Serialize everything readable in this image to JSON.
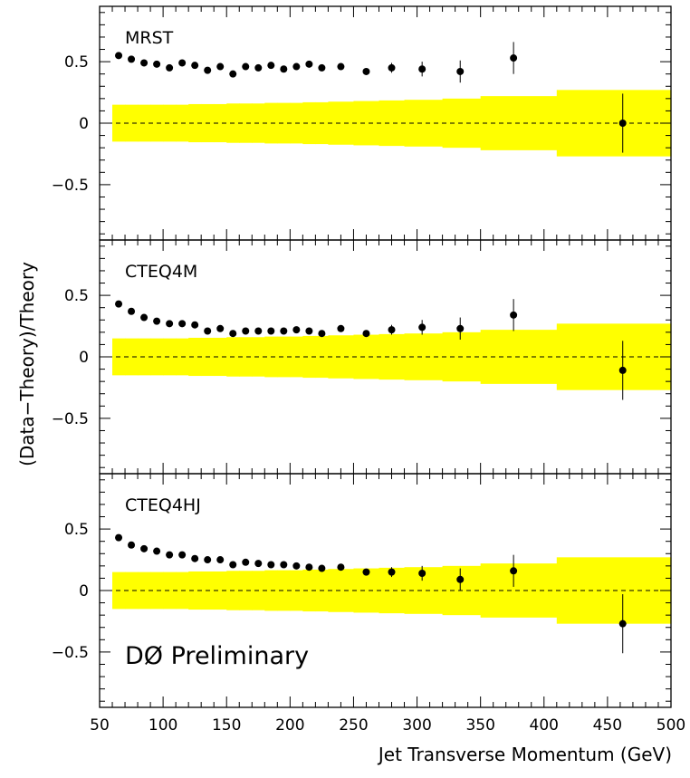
{
  "figure": {
    "ylabel": "(Data−Theory)/Theory",
    "xlabel": "Jet Transverse Momentum (GeV)",
    "annotation": "DØ Preliminary",
    "band_color": "#ffff00",
    "marker_color": "#000000"
  },
  "chart_data": [
    {
      "type": "scatter",
      "label": "MRST",
      "xlim": [
        50,
        500
      ],
      "ylim": [
        -0.95,
        0.95
      ],
      "x_ticks": [
        "50",
        "100",
        "150",
        "200",
        "250",
        "300",
        "350",
        "400",
        "450",
        "500"
      ],
      "y_ticks": [
        "0.5",
        "0",
        "−0.5"
      ],
      "x": [
        65,
        75,
        85,
        95,
        105,
        115,
        125,
        135,
        145,
        155,
        165,
        175,
        185,
        195,
        205,
        215,
        225,
        240,
        260,
        280,
        304,
        334,
        376,
        462
      ],
      "y": [
        0.55,
        0.52,
        0.49,
        0.48,
        0.45,
        0.49,
        0.47,
        0.43,
        0.46,
        0.4,
        0.46,
        0.45,
        0.47,
        0.44,
        0.46,
        0.48,
        0.45,
        0.46,
        0.42,
        0.45,
        0.44,
        0.42,
        0.53,
        0.0
      ],
      "y_err": [
        0.01,
        0.01,
        0.01,
        0.01,
        0.01,
        0.01,
        0.01,
        0.01,
        0.01,
        0.01,
        0.01,
        0.01,
        0.01,
        0.01,
        0.01,
        0.01,
        0.01,
        0.01,
        0.02,
        0.04,
        0.06,
        0.09,
        0.13,
        0.24
      ],
      "zero_line": true,
      "systematic_band": {
        "edges": [
          60,
          70,
          80,
          90,
          100,
          110,
          120,
          130,
          140,
          150,
          160,
          170,
          180,
          190,
          200,
          210,
          220,
          230,
          250,
          270,
          290,
          320,
          350,
          410,
          500
        ],
        "half_width": [
          0.15,
          0.15,
          0.15,
          0.15,
          0.15,
          0.15,
          0.155,
          0.155,
          0.155,
          0.16,
          0.16,
          0.16,
          0.165,
          0.165,
          0.165,
          0.17,
          0.17,
          0.175,
          0.18,
          0.185,
          0.19,
          0.2,
          0.22,
          0.27
        ]
      }
    },
    {
      "type": "scatter",
      "label": "CTEQ4M",
      "xlim": [
        50,
        500
      ],
      "ylim": [
        -0.95,
        0.95
      ],
      "x_ticks": [
        "50",
        "100",
        "150",
        "200",
        "250",
        "300",
        "350",
        "400",
        "450",
        "500"
      ],
      "y_ticks": [
        "0.5",
        "0",
        "−0.5"
      ],
      "x": [
        65,
        75,
        85,
        95,
        105,
        115,
        125,
        135,
        145,
        155,
        165,
        175,
        185,
        195,
        205,
        215,
        225,
        240,
        260,
        280,
        304,
        334,
        376,
        462
      ],
      "y": [
        0.43,
        0.37,
        0.32,
        0.29,
        0.27,
        0.27,
        0.26,
        0.21,
        0.23,
        0.19,
        0.21,
        0.21,
        0.21,
        0.21,
        0.22,
        0.21,
        0.19,
        0.23,
        0.19,
        0.22,
        0.24,
        0.23,
        0.34,
        -0.11
      ],
      "y_err": [
        0.01,
        0.01,
        0.01,
        0.01,
        0.01,
        0.01,
        0.01,
        0.01,
        0.01,
        0.01,
        0.01,
        0.01,
        0.01,
        0.01,
        0.01,
        0.01,
        0.01,
        0.01,
        0.02,
        0.04,
        0.06,
        0.09,
        0.13,
        0.24
      ],
      "zero_line": true,
      "systematic_band": {
        "edges": [
          60,
          70,
          80,
          90,
          100,
          110,
          120,
          130,
          140,
          150,
          160,
          170,
          180,
          190,
          200,
          210,
          220,
          230,
          250,
          270,
          290,
          320,
          350,
          410,
          500
        ],
        "half_width": [
          0.15,
          0.15,
          0.15,
          0.15,
          0.15,
          0.15,
          0.155,
          0.155,
          0.155,
          0.16,
          0.16,
          0.16,
          0.165,
          0.165,
          0.165,
          0.17,
          0.17,
          0.175,
          0.18,
          0.185,
          0.19,
          0.2,
          0.22,
          0.27
        ]
      }
    },
    {
      "type": "scatter",
      "label": "CTEQ4HJ",
      "xlim": [
        50,
        500
      ],
      "ylim": [
        -0.95,
        0.95
      ],
      "x_ticks": [
        "50",
        "100",
        "150",
        "200",
        "250",
        "300",
        "350",
        "400",
        "450",
        "500"
      ],
      "y_ticks": [
        "0.5",
        "0",
        "−0.5"
      ],
      "x": [
        65,
        75,
        85,
        95,
        105,
        115,
        125,
        135,
        145,
        155,
        165,
        175,
        185,
        195,
        205,
        215,
        225,
        240,
        260,
        280,
        304,
        334,
        376,
        462
      ],
      "y": [
        0.43,
        0.37,
        0.34,
        0.32,
        0.29,
        0.29,
        0.26,
        0.25,
        0.25,
        0.21,
        0.23,
        0.22,
        0.21,
        0.21,
        0.2,
        0.19,
        0.18,
        0.19,
        0.15,
        0.15,
        0.14,
        0.09,
        0.16,
        -0.27
      ],
      "y_err": [
        0.01,
        0.01,
        0.01,
        0.01,
        0.01,
        0.01,
        0.01,
        0.01,
        0.01,
        0.01,
        0.01,
        0.01,
        0.01,
        0.01,
        0.01,
        0.01,
        0.01,
        0.01,
        0.02,
        0.04,
        0.06,
        0.09,
        0.13,
        0.24
      ],
      "zero_line": true,
      "systematic_band": {
        "edges": [
          60,
          70,
          80,
          90,
          100,
          110,
          120,
          130,
          140,
          150,
          160,
          170,
          180,
          190,
          200,
          210,
          220,
          230,
          250,
          270,
          290,
          320,
          350,
          410,
          500
        ],
        "half_width": [
          0.15,
          0.15,
          0.15,
          0.15,
          0.15,
          0.15,
          0.155,
          0.155,
          0.155,
          0.16,
          0.16,
          0.16,
          0.165,
          0.165,
          0.165,
          0.17,
          0.17,
          0.175,
          0.18,
          0.185,
          0.19,
          0.2,
          0.22,
          0.27
        ]
      }
    }
  ]
}
